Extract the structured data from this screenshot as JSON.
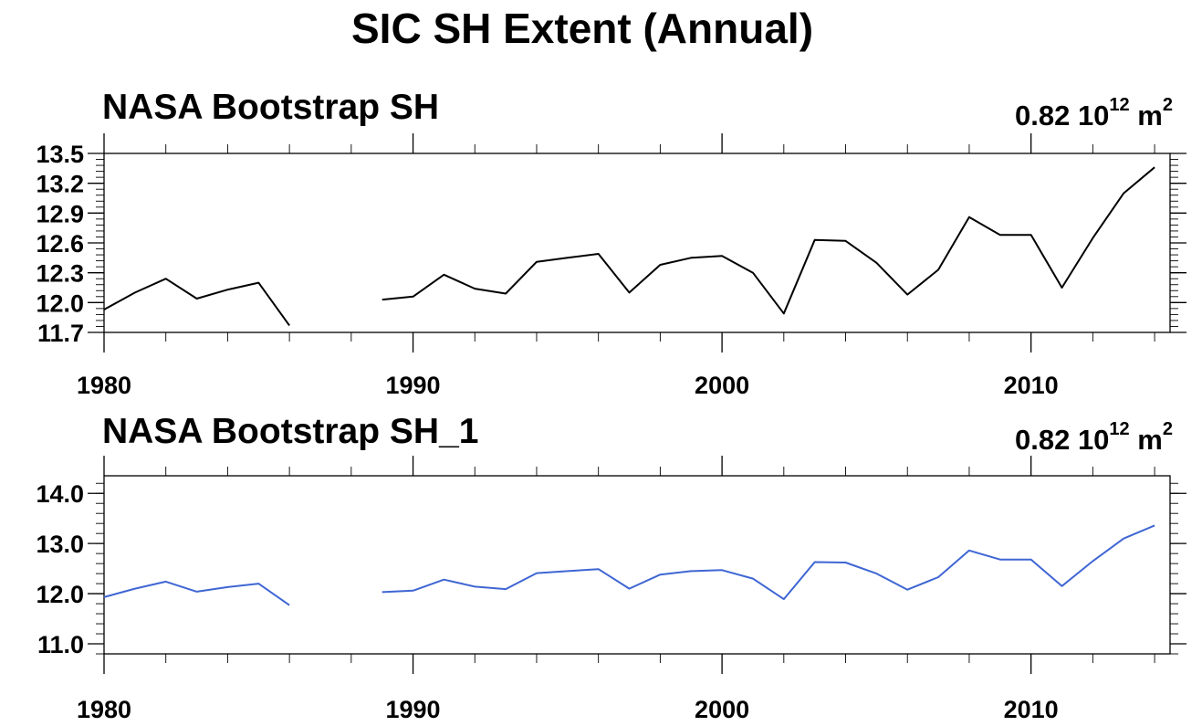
{
  "title": "SIC SH Extent (Annual)",
  "chart_data": [
    {
      "type": "line",
      "title": "NASA Bootstrap SH",
      "annotation": {
        "value": "0.82",
        "base": "10",
        "exponent": "12",
        "unit": "m",
        "unit_exponent": "2"
      },
      "xlabel": "",
      "ylabel": "",
      "xlim": [
        1980,
        2014.5
      ],
      "ylim": [
        11.7,
        13.5
      ],
      "x_ticks": [
        1980,
        1990,
        2000,
        2010
      ],
      "y_ticks": [
        "11.7",
        "12.0",
        "12.3",
        "12.6",
        "12.9",
        "13.2",
        "13.5"
      ],
      "grid": false,
      "color": "#000000",
      "series": [
        {
          "x": [
            1980,
            1981,
            1982,
            1983,
            1984,
            1985,
            1986,
            1987,
            1988,
            1989,
            1990,
            1991,
            1992,
            1993,
            1994,
            1995,
            1996,
            1997,
            1998,
            1999,
            2000,
            2001,
            2002,
            2003,
            2004,
            2005,
            2006,
            2007,
            2008,
            2009,
            2010,
            2011,
            2012,
            2013,
            2014
          ],
          "values": [
            11.93,
            12.1,
            12.24,
            12.04,
            12.13,
            12.2,
            11.77,
            null,
            null,
            12.03,
            12.06,
            12.28,
            12.14,
            12.09,
            12.41,
            12.45,
            12.49,
            12.1,
            12.38,
            12.45,
            12.47,
            12.3,
            11.89,
            12.63,
            12.62,
            12.4,
            12.08,
            12.33,
            12.86,
            12.68,
            12.68,
            12.15,
            12.65,
            13.1,
            13.36
          ]
        }
      ]
    },
    {
      "type": "line",
      "title": "NASA Bootstrap SH_1",
      "annotation": {
        "value": "0.82",
        "base": "10",
        "exponent": "12",
        "unit": "m",
        "unit_exponent": "2"
      },
      "xlabel": "",
      "ylabel": "",
      "xlim": [
        1980,
        2014.5
      ],
      "ylim": [
        10.8,
        14.35
      ],
      "x_ticks": [
        1980,
        1990,
        2000,
        2010
      ],
      "y_ticks": [
        "11.0",
        "12.0",
        "13.0",
        "14.0"
      ],
      "grid": false,
      "color": "#3f66d3",
      "series": [
        {
          "x": [
            1980,
            1981,
            1982,
            1983,
            1984,
            1985,
            1986,
            1987,
            1988,
            1989,
            1990,
            1991,
            1992,
            1993,
            1994,
            1995,
            1996,
            1997,
            1998,
            1999,
            2000,
            2001,
            2002,
            2003,
            2004,
            2005,
            2006,
            2007,
            2008,
            2009,
            2010,
            2011,
            2012,
            2013,
            2014
          ],
          "values": [
            11.93,
            12.1,
            12.24,
            12.04,
            12.13,
            12.2,
            11.77,
            null,
            null,
            12.03,
            12.06,
            12.28,
            12.14,
            12.09,
            12.41,
            12.45,
            12.49,
            12.1,
            12.38,
            12.45,
            12.47,
            12.3,
            11.89,
            12.63,
            12.62,
            12.4,
            12.08,
            12.33,
            12.86,
            12.68,
            12.68,
            12.15,
            12.65,
            13.1,
            13.36
          ]
        }
      ]
    }
  ]
}
